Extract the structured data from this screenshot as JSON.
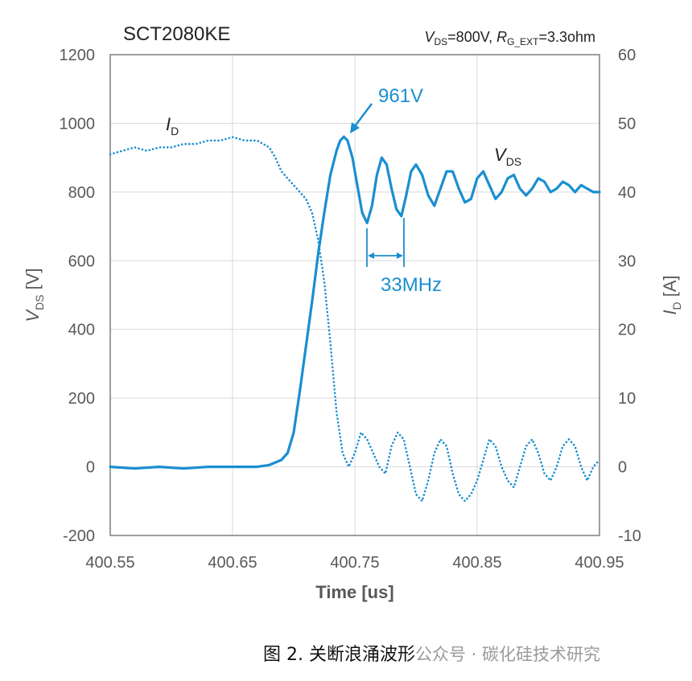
{
  "chart_data": {
    "type": "line",
    "title": "SCT2080KE",
    "conditions": {
      "v_sym": "V",
      "v_sub": "DS",
      "v_eq": "=800V, ",
      "r_sym": "R",
      "r_sub": "G_EXT",
      "r_eq": "=3.3ohm"
    },
    "xlabel": "Time [us]",
    "ylabel_left": {
      "sym": "V",
      "sub": "DS",
      "unit": "[V]"
    },
    "ylabel_right": {
      "sym": "I",
      "sub": "D",
      "unit": "[A]"
    },
    "xlim": [
      400.55,
      400.95
    ],
    "ylim_left": [
      -200,
      1200
    ],
    "ylim_right": [
      -10,
      60
    ],
    "x_ticks": [
      "400.55",
      "400.65",
      "400.75",
      "400.85",
      "400.95"
    ],
    "y_left_ticks": [
      "-200",
      "0",
      "200",
      "400",
      "600",
      "800",
      "1000",
      "1200"
    ],
    "y_right_ticks": [
      "-10",
      "0",
      "10",
      "20",
      "30",
      "40",
      "50",
      "60"
    ],
    "grid": true,
    "series": [
      {
        "name": "VDS",
        "axis": "left",
        "style": "solid",
        "color": "#1a8fd0",
        "x": [
          400.55,
          400.57,
          400.59,
          400.61,
          400.63,
          400.65,
          400.67,
          400.68,
          400.69,
          400.695,
          400.7,
          400.705,
          400.71,
          400.715,
          400.72,
          400.725,
          400.73,
          400.735,
          400.738,
          400.741,
          400.744,
          400.748,
          400.752,
          400.756,
          400.76,
          400.764,
          400.768,
          400.772,
          400.776,
          400.78,
          400.784,
          400.788,
          400.792,
          400.796,
          400.8,
          400.805,
          400.81,
          400.815,
          400.82,
          400.825,
          400.83,
          400.835,
          400.84,
          400.845,
          400.85,
          400.855,
          400.86,
          400.865,
          400.87,
          400.875,
          400.88,
          400.885,
          400.89,
          400.895,
          400.9,
          400.905,
          400.91,
          400.915,
          400.92,
          400.925,
          400.93,
          400.935,
          400.94,
          400.945,
          400.95
        ],
        "y": [
          0,
          -5,
          0,
          -5,
          0,
          0,
          0,
          5,
          20,
          40,
          100,
          220,
          350,
          480,
          620,
          740,
          850,
          920,
          950,
          961,
          950,
          900,
          820,
          740,
          710,
          760,
          850,
          900,
          880,
          810,
          750,
          730,
          790,
          860,
          880,
          850,
          790,
          760,
          810,
          860,
          860,
          810,
          770,
          780,
          840,
          860,
          820,
          780,
          800,
          840,
          850,
          810,
          790,
          810,
          840,
          830,
          800,
          810,
          830,
          820,
          800,
          820,
          810,
          800,
          800
        ]
      },
      {
        "name": "ID",
        "axis": "right",
        "style": "dotted",
        "color": "#1a8fd0",
        "x": [
          400.55,
          400.56,
          400.57,
          400.58,
          400.59,
          400.6,
          400.61,
          400.62,
          400.63,
          400.64,
          400.65,
          400.66,
          400.67,
          400.68,
          400.685,
          400.69,
          400.695,
          400.7,
          400.705,
          400.71,
          400.715,
          400.72,
          400.725,
          400.73,
          400.735,
          400.74,
          400.745,
          400.75,
          400.755,
          400.76,
          400.765,
          400.77,
          400.775,
          400.78,
          400.785,
          400.79,
          400.795,
          400.8,
          400.805,
          400.81,
          400.815,
          400.82,
          400.825,
          400.83,
          400.835,
          400.84,
          400.845,
          400.85,
          400.855,
          400.86,
          400.865,
          400.87,
          400.875,
          400.88,
          400.885,
          400.89,
          400.895,
          400.9,
          400.905,
          400.91,
          400.915,
          400.92,
          400.925,
          400.93,
          400.935,
          400.94,
          400.945,
          400.95
        ],
        "y": [
          45.5,
          46,
          46.5,
          46,
          46.5,
          46.5,
          47,
          47,
          47.5,
          47.5,
          48,
          47.5,
          47.5,
          46.5,
          45,
          43,
          42,
          41,
          40,
          39,
          37,
          33,
          27,
          18,
          8,
          2,
          0,
          2,
          5,
          4,
          2,
          0,
          -1,
          3,
          5,
          4,
          0,
          -4,
          -5,
          -2,
          2,
          4,
          3,
          -1,
          -4,
          -5,
          -4,
          -2,
          1,
          4,
          3,
          0,
          -2,
          -3,
          0,
          3,
          4,
          2,
          -1,
          -2,
          0,
          3,
          4,
          3,
          0,
          -2,
          0,
          1
        ]
      }
    ],
    "annotations": {
      "peak": "961V",
      "freq": "33MHz",
      "vds_sym": "V",
      "vds_sub": "DS",
      "id_sym": "I",
      "id_sub": "D"
    }
  },
  "caption": {
    "text": "图 2. 关断浪涌波形",
    "watermark": "公众号 · 碳化硅技术研究"
  }
}
